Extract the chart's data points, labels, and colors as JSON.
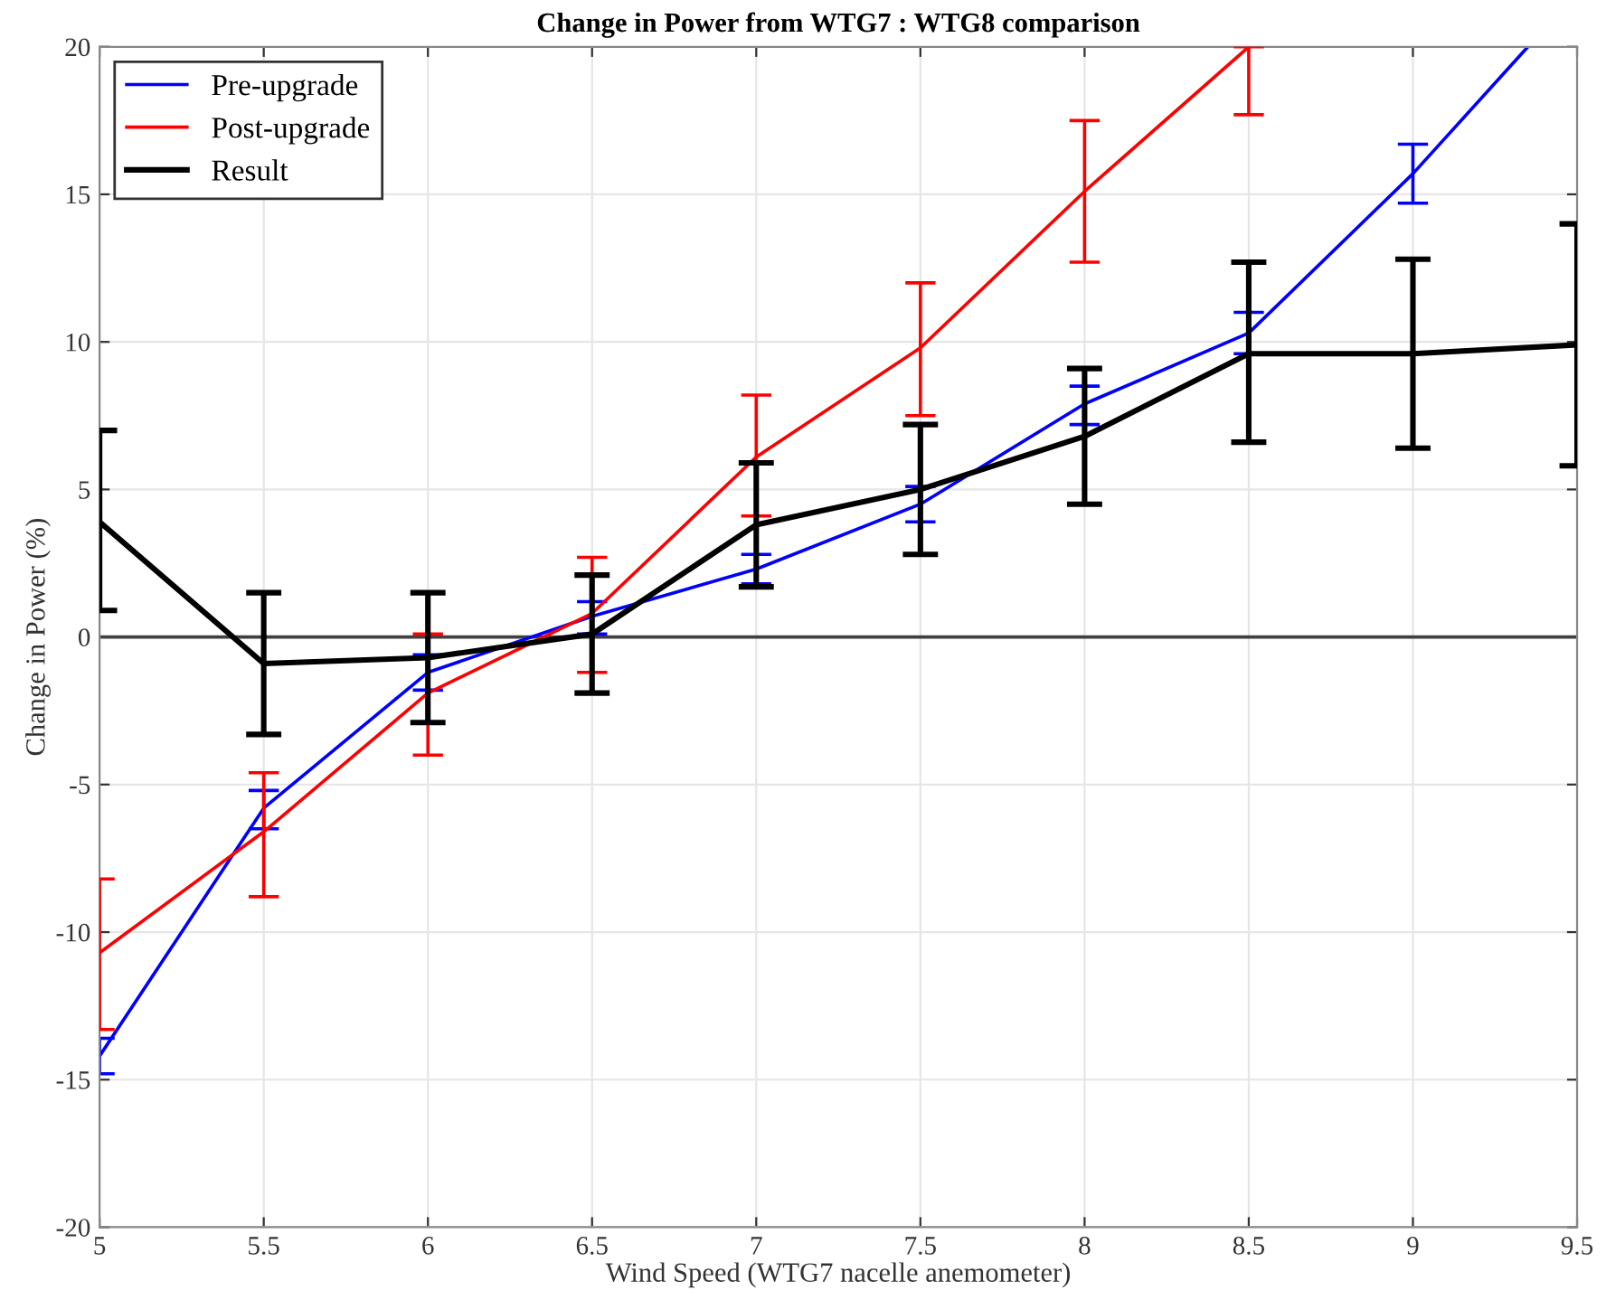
{
  "chart_data": {
    "type": "line",
    "title": "Change in Power from WTG7 : WTG8 comparison",
    "xlabel": "Wind Speed (WTG7 nacelle anemometer)",
    "ylabel": "Change in Power (%)",
    "xlim": [
      5,
      9.5
    ],
    "xticks": [
      5,
      5.5,
      6,
      6.5,
      7,
      7.5,
      8,
      8.5,
      9,
      9.5
    ],
    "ylim": [
      -20,
      20
    ],
    "yticks": [
      -20,
      -15,
      -10,
      -5,
      0,
      5,
      10,
      15,
      20
    ],
    "grid": true,
    "legend": "top left",
    "marker": "none",
    "line_style": "solid",
    "ref_lines": [
      {
        "axis": "y",
        "value": 0,
        "color": "#404040"
      }
    ],
    "series": [
      {
        "name": "Pre-upgrade",
        "color": "#0000ff",
        "x": [
          5,
          5.5,
          6,
          6.5,
          7,
          7.5,
          8,
          8.5,
          9,
          9.35
        ],
        "values": [
          -14.2,
          -5.8,
          -1.2,
          0.7,
          2.3,
          4.5,
          7.9,
          10.3,
          15.7,
          20
        ],
        "errors": [
          [
            -14.8,
            -13.6
          ],
          [
            -6.5,
            -5.2
          ],
          [
            -1.8,
            -0.6
          ],
          [
            0.1,
            1.2
          ],
          [
            1.8,
            2.8
          ],
          [
            3.9,
            5.1
          ],
          [
            7.2,
            8.5
          ],
          [
            9.6,
            11.0
          ],
          [
            14.7,
            16.7
          ],
          null
        ]
      },
      {
        "name": "Post-upgrade",
        "color": "#ff0000",
        "x": [
          5,
          5.5,
          6,
          6.5,
          7,
          7.5,
          8,
          8.5
        ],
        "values": [
          -10.7,
          -6.6,
          -1.9,
          0.8,
          6.1,
          9.8,
          15.1,
          20
        ],
        "errors": [
          [
            -13.3,
            -8.2
          ],
          [
            -8.8,
            -4.6
          ],
          [
            -4.0,
            0.1
          ],
          [
            -1.2,
            2.7
          ],
          [
            4.1,
            8.2
          ],
          [
            7.5,
            12.0
          ],
          [
            12.7,
            17.5
          ],
          [
            17.7,
            20
          ]
        ]
      },
      {
        "name": "Result",
        "color": "#000000",
        "x": [
          5,
          5.5,
          6,
          6.5,
          7,
          7.5,
          8,
          8.5,
          9,
          9.5
        ],
        "values": [
          3.9,
          -0.9,
          -0.7,
          0.1,
          3.8,
          5.0,
          6.8,
          9.6,
          9.6,
          9.9
        ],
        "errors": [
          [
            0.9,
            7.0
          ],
          [
            -3.3,
            1.5
          ],
          [
            -2.9,
            1.5
          ],
          [
            -1.9,
            2.1
          ],
          [
            1.7,
            5.9
          ],
          [
            2.8,
            7.2
          ],
          [
            4.5,
            9.1
          ],
          [
            6.6,
            12.7
          ],
          [
            6.4,
            12.8
          ],
          [
            5.8,
            14.0
          ]
        ]
      }
    ]
  }
}
